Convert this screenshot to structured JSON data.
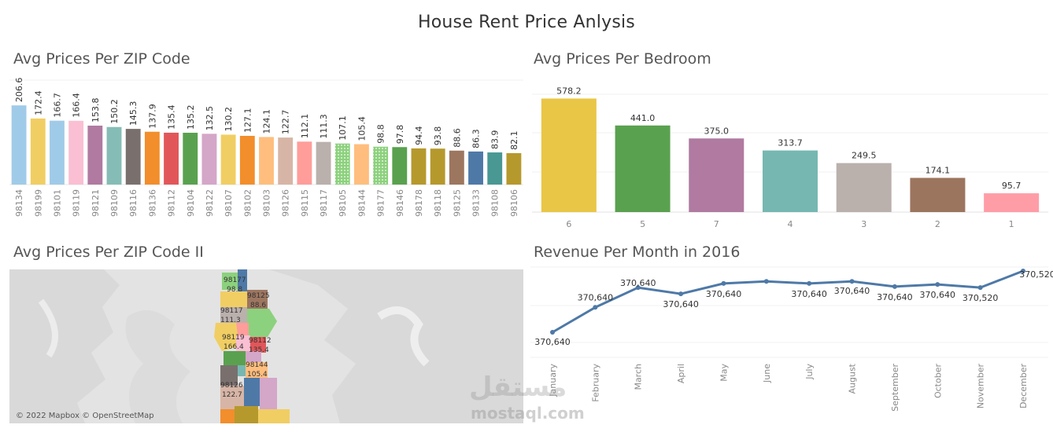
{
  "dashboard": {
    "title": "House Rent Price Anlysis"
  },
  "panels": {
    "zip_bar_title": "Avg Prices Per ZIP Code",
    "bedroom_title": "Avg Prices Per Bedroom",
    "zip_map_title": "Avg Prices Per ZIP Code II",
    "revenue_title": "Revenue Per Month in 2016"
  },
  "map": {
    "credit": "© 2022 Mapbox © OpenStreetMap",
    "labels": [
      {
        "zip": "98177",
        "value": "98.8"
      },
      {
        "zip": "98125",
        "value": "88.6"
      },
      {
        "zip": "98117",
        "value": "111.3"
      },
      {
        "zip": "98119",
        "value": "166.4"
      },
      {
        "zip": "98112",
        "value": "135.4"
      },
      {
        "zip": "98144",
        "value": "105.4"
      },
      {
        "zip": "98126",
        "value": "122.7"
      }
    ]
  },
  "watermark": {
    "arabic": "مستقل",
    "latin": "mostaql.com"
  },
  "chart_data": [
    {
      "type": "bar",
      "title": "Avg Prices Per ZIP Code",
      "categories": [
        "98134",
        "98199",
        "98101",
        "98119",
        "98121",
        "98109",
        "98116",
        "98136",
        "98112",
        "98104",
        "98122",
        "98107",
        "98102",
        "98103",
        "98126",
        "98115",
        "98117",
        "98105",
        "98144",
        "98177",
        "98146",
        "98178",
        "98118",
        "98125",
        "98133",
        "98108",
        "98106"
      ],
      "values": [
        206.6,
        172.4,
        166.7,
        166.4,
        153.8,
        150.2,
        145.3,
        137.9,
        135.4,
        135.2,
        132.5,
        130.2,
        127.1,
        124.1,
        122.7,
        112.1,
        111.3,
        107.1,
        105.4,
        98.8,
        97.8,
        94.4,
        93.8,
        88.6,
        86.3,
        83.9,
        82.1
      ],
      "labels": [
        "206.6",
        "172.4",
        "166.7",
        "166.4",
        "153.8",
        "150.2",
        "145.3",
        "137.9",
        "135.4",
        "135.2",
        "132.5",
        "130.2",
        "127.1",
        "124.1",
        "122.7",
        "112.1",
        "111.3",
        "107.1",
        "105.4",
        "98.8",
        "97.8",
        "94.4",
        "93.8",
        "88.6",
        "86.3",
        "83.9",
        "82.1"
      ],
      "colors": [
        "#a0cbe8",
        "#f1ce63",
        "#a0cbe8",
        "#fabfd2",
        "#b07aa1",
        "#86bcb6",
        "#79706e",
        "#f28e2b",
        "#e15759",
        "#59a14f",
        "#d4a6c8",
        "#f1ce63",
        "#f28e2b",
        "#ffbe7d",
        "#d7b5a6",
        "#ff9d9a",
        "#bab0ac",
        "#8cd17d",
        "#ffbe7d",
        "#8cd17d",
        "#59a14f",
        "#b6992d",
        "#b6992d",
        "#9d7660",
        "#4e79a7",
        "#499894",
        "#b6992d"
      ],
      "patterned": [
        false,
        false,
        false,
        false,
        false,
        false,
        false,
        false,
        false,
        false,
        false,
        false,
        false,
        false,
        false,
        false,
        false,
        true,
        false,
        true,
        false,
        false,
        false,
        false,
        false,
        false,
        false
      ],
      "ylim": [
        0,
        250
      ],
      "grid": true
    },
    {
      "type": "bar",
      "title": "Avg Prices Per Bedroom",
      "categories": [
        "6",
        "5",
        "7",
        "4",
        "3",
        "2",
        "1"
      ],
      "values": [
        578.2,
        441.0,
        375.0,
        313.7,
        249.5,
        174.1,
        95.7
      ],
      "labels": [
        "578.2",
        "441.0",
        "375.0",
        "313.7",
        "249.5",
        "174.1",
        "95.7"
      ],
      "colors": [
        "#e9c646",
        "#59a14f",
        "#b07aa1",
        "#76b7b2",
        "#bab0ac",
        "#9c755f",
        "#ff9da7"
      ],
      "ylim": [
        0,
        600
      ],
      "grid": true
    },
    {
      "type": "line",
      "title": "Revenue Per Month in 2016",
      "x": [
        "January",
        "February",
        "March",
        "April",
        "May",
        "June",
        "July",
        "August",
        "September",
        "October",
        "November",
        "December"
      ],
      "y": [
        370640,
        370640,
        370640,
        370640,
        370640,
        370640,
        370640,
        370640,
        370640,
        370640,
        370520,
        370520
      ],
      "plot_level": [
        0.31,
        0.55,
        0.74,
        0.68,
        0.78,
        0.8,
        0.78,
        0.8,
        0.75,
        0.77,
        0.74,
        0.9
      ],
      "labels": [
        "370,640",
        "370,640",
        "370,640",
        "370,640",
        "370,640",
        "",
        "370,640",
        "370,640",
        "370,640",
        "370,640",
        "370,520",
        "370,520"
      ],
      "color": "#4e79a7",
      "grid": true
    }
  ]
}
